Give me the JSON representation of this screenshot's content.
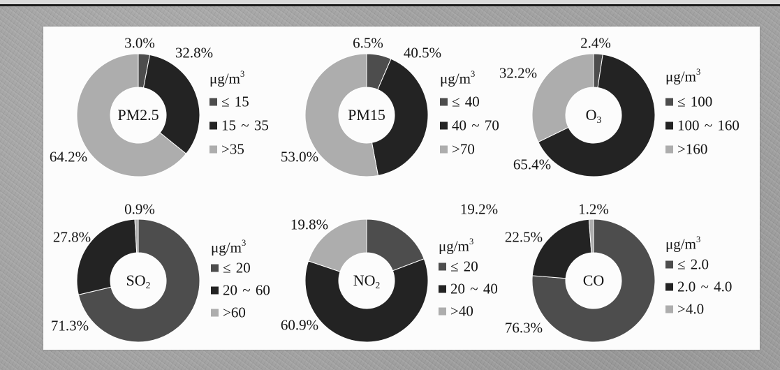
{
  "chart_data": [
    {
      "type": "pie",
      "donut": true,
      "center_label": "PM2.5",
      "center_label_sub": "",
      "legend_title": "μg/m",
      "legend_title_sup": "3",
      "categories": [
        "≤ 15",
        "15 ~ 35",
        ">35"
      ],
      "values": [
        3.0,
        32.8,
        64.2
      ],
      "data_labels": [
        "3.0%",
        "32.8%",
        "64.2%"
      ]
    },
    {
      "type": "pie",
      "donut": true,
      "center_label": "PM15",
      "center_label_sub": "",
      "legend_title": "μg/m",
      "legend_title_sup": "3",
      "categories": [
        "≤ 40",
        "40 ~ 70",
        ">70"
      ],
      "values": [
        6.5,
        40.5,
        53.0
      ],
      "data_labels": [
        "6.5%",
        "40.5%",
        "53.0%"
      ]
    },
    {
      "type": "pie",
      "donut": true,
      "center_label": "O",
      "center_label_sub": "3",
      "legend_title": "μg/m",
      "legend_title_sup": "3",
      "categories": [
        "≤ 100",
        "100 ~ 160",
        ">160"
      ],
      "values": [
        2.4,
        65.4,
        32.2
      ],
      "data_labels": [
        "2.4%",
        "65.4%",
        "32.2%"
      ]
    },
    {
      "type": "pie",
      "donut": true,
      "center_label": "SO",
      "center_label_sub": "2",
      "legend_title": "μg/m",
      "legend_title_sup": "3",
      "categories": [
        "≤ 20",
        "20 ~ 60",
        ">60"
      ],
      "values": [
        71.3,
        27.8,
        0.9
      ],
      "data_labels": [
        "71.3%",
        "27.8%",
        "0.9%"
      ]
    },
    {
      "type": "pie",
      "donut": true,
      "center_label": "NO",
      "center_label_sub": "2",
      "legend_title": "μg/m",
      "legend_title_sup": "3",
      "categories": [
        "≤ 20",
        "20 ~ 40",
        ">40"
      ],
      "values": [
        19.2,
        60.9,
        19.8
      ],
      "data_labels": [
        "19.2%",
        "60.9%",
        "19.8%"
      ]
    },
    {
      "type": "pie",
      "donut": true,
      "center_label": "CO",
      "center_label_sub": "",
      "legend_title": "μg/m",
      "legend_title_sup": "3",
      "categories": [
        "≤ 2.0",
        "2.0 ~ 4.0",
        ">4.0"
      ],
      "values": [
        76.3,
        22.5,
        1.2
      ],
      "data_labels": [
        "76.3%",
        "22.5%",
        "1.2%"
      ]
    }
  ],
  "series_colors": [
    "#4d4d4d",
    "#232323",
    "#adadad"
  ]
}
